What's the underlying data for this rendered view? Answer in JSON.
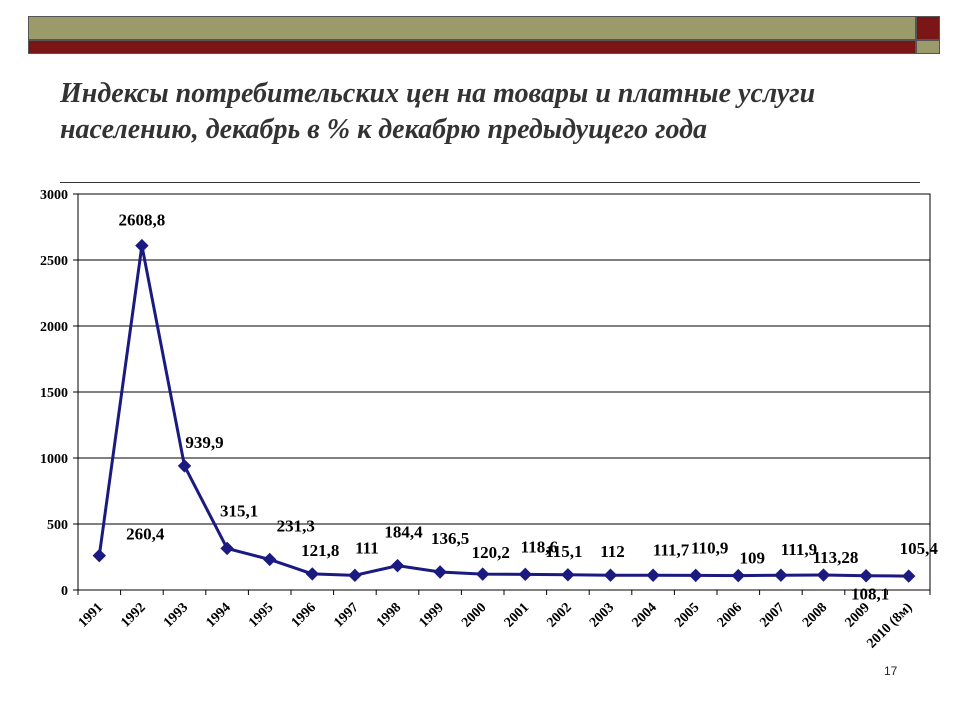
{
  "title": "Индексы потребительских цен на товары и платные услуги населению, декабрь в % к декабрю предыдущего года",
  "page_number": "17",
  "colors": {
    "line": "#1a1a80",
    "olive": "#9a9a6a",
    "maroon": "#7a1616"
  },
  "chart_data": {
    "type": "line",
    "title": "",
    "xlabel": "",
    "ylabel": "",
    "ylim": [
      0,
      3000
    ],
    "yticks": [
      0,
      500,
      1000,
      1500,
      2000,
      2500,
      3000
    ],
    "categories": [
      "1991",
      "1992",
      "1993",
      "1994",
      "1995",
      "1996",
      "1997",
      "1998",
      "1999",
      "2000",
      "2001",
      "2002",
      "2003",
      "2004",
      "2005",
      "2006",
      "2007",
      "2008",
      "2009",
      "2010 (8м)"
    ],
    "values": [
      260.4,
      2608.8,
      939.9,
      315.1,
      231.3,
      121.8,
      111,
      184.4,
      136.5,
      120.2,
      118.6,
      115.1,
      112,
      111.7,
      110.9,
      109,
      111.9,
      113.28,
      108.1,
      105.4
    ],
    "labels": [
      "260,4",
      "2608,8",
      "939,9",
      "315,1",
      "231,3",
      "121,8",
      "111",
      "184,4",
      "136,5",
      "120,2",
      "118,6",
      "115,1",
      "112",
      "111,7",
      "110,9",
      "109",
      "111,9",
      "113,28",
      "108,1",
      "105,4"
    ],
    "grid": "horizontal",
    "legend": "none"
  }
}
